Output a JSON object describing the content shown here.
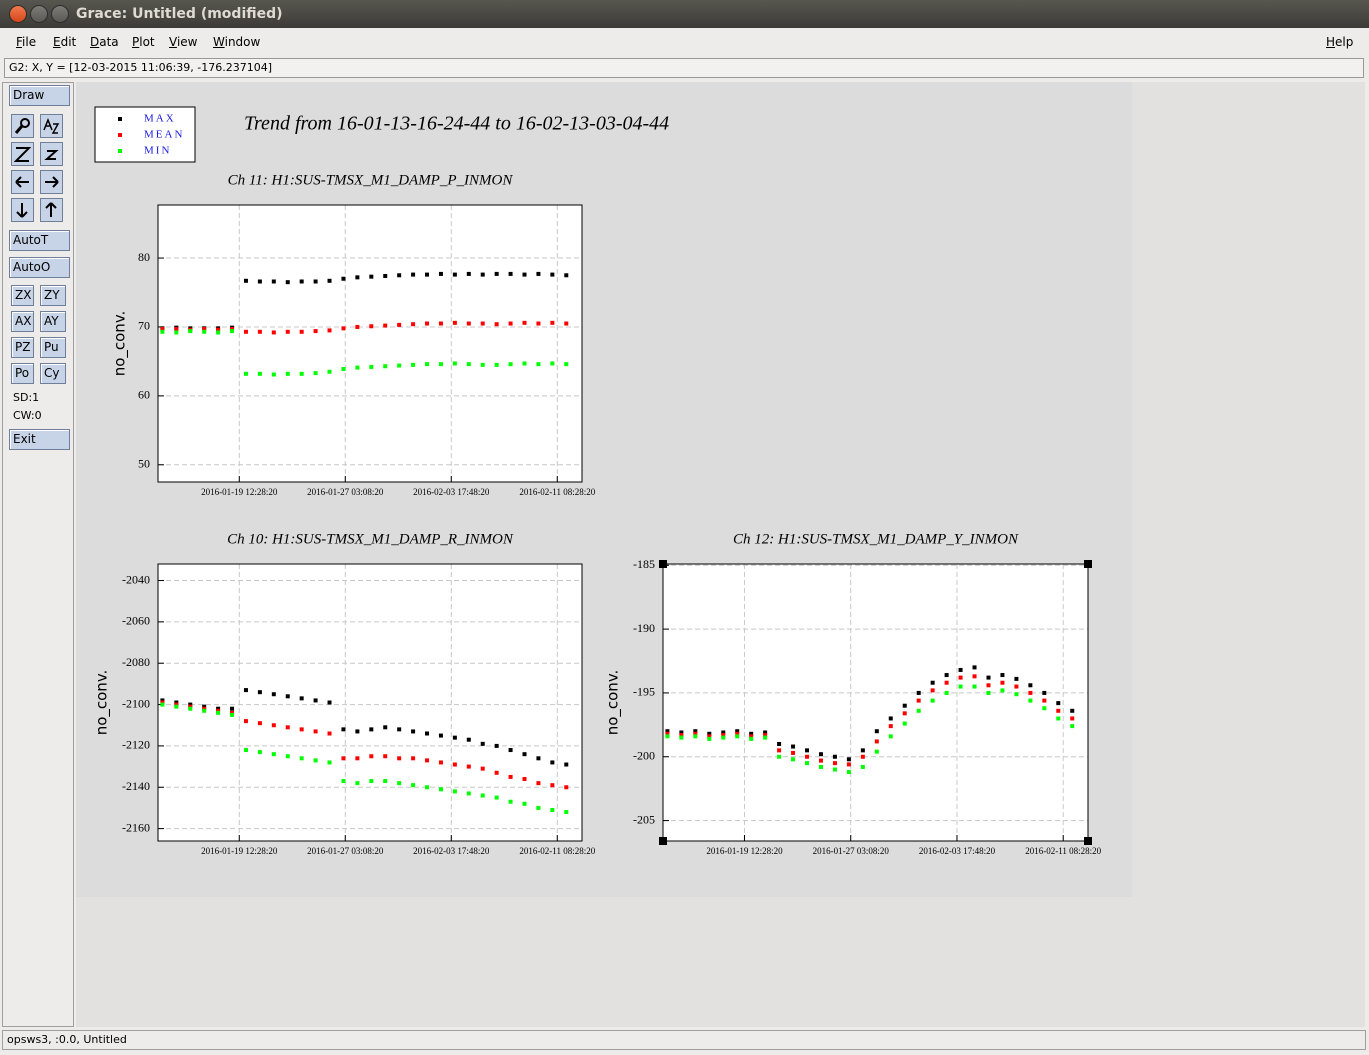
{
  "window": {
    "title": "Grace: Untitled (modified)",
    "menu": [
      "File",
      "Edit",
      "Data",
      "Plot",
      "View",
      "Window"
    ],
    "help": "Help",
    "locator": "G2: X, Y = [12-03-2015 11:06:39, -176.237104]",
    "status": "opsws3, :0.0, Untitled"
  },
  "toolbar": {
    "draw": "Draw",
    "auto": [
      "AutoT",
      "AutoO"
    ],
    "pairs": [
      [
        "ZX",
        "ZY"
      ],
      [
        "AX",
        "AY"
      ],
      [
        "PZ",
        "Pu"
      ],
      [
        "Po",
        "Cy"
      ]
    ],
    "info": [
      "SD:1",
      "CW:0"
    ],
    "exit": "Exit"
  },
  "graph_title": "Trend from 16-01-13-16-24-44 to 16-02-13-03-04-44",
  "chart_data": [
    {
      "type": "scatter",
      "title": "Ch 11: H1:SUS-TMSX_M1_DAMP_P_INMON",
      "ylabel": "no_conv.",
      "x": [
        "2016-01-14 00:00:00",
        "2016-01-15 00:00:00",
        "2016-01-16 00:00:00",
        "2016-01-17 00:00:00",
        "2016-01-18 00:00:00",
        "2016-01-19 00:00:00",
        "2016-01-20 00:00:00",
        "2016-01-21 00:00:00",
        "2016-01-22 00:00:00",
        "2016-01-23 00:00:00",
        "2016-01-24 00:00:00",
        "2016-01-25 00:00:00",
        "2016-01-26 00:00:00",
        "2016-01-27 00:00:00",
        "2016-01-28 00:00:00",
        "2016-01-29 00:00:00",
        "2016-01-30 00:00:00",
        "2016-01-31 00:00:00",
        "2016-02-01 00:00:00",
        "2016-02-02 00:00:00",
        "2016-02-03 00:00:00",
        "2016-02-04 00:00:00",
        "2016-02-05 00:00:00",
        "2016-02-06 00:00:00",
        "2016-02-07 00:00:00",
        "2016-02-08 00:00:00",
        "2016-02-09 00:00:00",
        "2016-02-10 00:00:00",
        "2016-02-11 00:00:00",
        "2016-02-12 00:00:00"
      ],
      "xlim": [
        "2016-01-13 16:24:44",
        "2016-02-13 03:04:44"
      ],
      "xticks": [
        "2016-01-19 12:28:20",
        "2016-01-27 03:08:20",
        "2016-02-03 17:48:20",
        "2016-02-11 08:28:20"
      ],
      "ylim": [
        47.5,
        87.7
      ],
      "yticks": [
        50,
        60,
        70,
        80
      ],
      "grid": true,
      "series": [
        {
          "name": "MAX",
          "color": "#000000",
          "values": [
            69.8,
            69.9,
            69.8,
            69.8,
            69.8,
            69.9,
            76.7,
            76.6,
            76.6,
            76.5,
            76.6,
            76.6,
            76.7,
            77.0,
            77.2,
            77.3,
            77.4,
            77.5,
            77.6,
            77.6,
            77.7,
            77.6,
            77.7,
            77.6,
            77.7,
            77.7,
            77.6,
            77.7,
            77.6,
            77.5
          ]
        },
        {
          "name": "MEAN",
          "color": "#ff0000",
          "values": [
            69.7,
            69.7,
            69.6,
            69.7,
            69.6,
            69.7,
            69.3,
            69.3,
            69.2,
            69.3,
            69.3,
            69.4,
            69.5,
            69.8,
            70.0,
            70.1,
            70.2,
            70.3,
            70.4,
            70.5,
            70.5,
            70.6,
            70.5,
            70.5,
            70.4,
            70.5,
            70.6,
            70.5,
            70.6,
            70.5
          ]
        },
        {
          "name": "MIN",
          "color": "#00ff00",
          "values": [
            69.3,
            69.2,
            69.4,
            69.3,
            69.2,
            69.4,
            63.2,
            63.2,
            63.1,
            63.2,
            63.2,
            63.3,
            63.5,
            63.9,
            64.1,
            64.2,
            64.3,
            64.4,
            64.5,
            64.6,
            64.6,
            64.7,
            64.6,
            64.5,
            64.5,
            64.6,
            64.7,
            64.6,
            64.7,
            64.6
          ]
        }
      ]
    },
    {
      "type": "scatter",
      "title": "Ch 10: H1:SUS-TMSX_M1_DAMP_R_INMON",
      "ylabel": "no_conv.",
      "x": [
        "2016-01-14 00:00:00",
        "2016-01-15 00:00:00",
        "2016-01-16 00:00:00",
        "2016-01-17 00:00:00",
        "2016-01-18 00:00:00",
        "2016-01-19 00:00:00",
        "2016-01-20 00:00:00",
        "2016-01-21 00:00:00",
        "2016-01-22 00:00:00",
        "2016-01-23 00:00:00",
        "2016-01-24 00:00:00",
        "2016-01-25 00:00:00",
        "2016-01-26 00:00:00",
        "2016-01-27 00:00:00",
        "2016-01-28 00:00:00",
        "2016-01-29 00:00:00",
        "2016-01-30 00:00:00",
        "2016-01-31 00:00:00",
        "2016-02-01 00:00:00",
        "2016-02-02 00:00:00",
        "2016-02-03 00:00:00",
        "2016-02-04 00:00:00",
        "2016-02-05 00:00:00",
        "2016-02-06 00:00:00",
        "2016-02-07 00:00:00",
        "2016-02-08 00:00:00",
        "2016-02-09 00:00:00",
        "2016-02-10 00:00:00",
        "2016-02-11 00:00:00",
        "2016-02-12 00:00:00"
      ],
      "xlim": [
        "2016-01-13 16:24:44",
        "2016-02-13 03:04:44"
      ],
      "xticks": [
        "2016-01-19 12:28:20",
        "2016-01-27 03:08:20",
        "2016-02-03 17:48:20",
        "2016-02-11 08:28:20"
      ],
      "ylim": [
        -2166,
        -2032
      ],
      "yticks": [
        -2040,
        -2060,
        -2080,
        -2100,
        -2120,
        -2140,
        -2160
      ],
      "grid": true,
      "series": [
        {
          "color": "#000000",
          "values": [
            -2098,
            -2099,
            -2100,
            -2101,
            -2102,
            -2102,
            -2093,
            -2094,
            -2095,
            -2096,
            -2097,
            -2098,
            -2099,
            -2112,
            -2113,
            -2112,
            -2111,
            -2112,
            -2113,
            -2114,
            -2115,
            -2116,
            -2117,
            -2119,
            -2120,
            -2122,
            -2124,
            -2126,
            -2128,
            -2129
          ]
        },
        {
          "color": "#ff0000",
          "values": [
            -2099,
            -2100,
            -2101,
            -2102,
            -2103,
            -2104,
            -2108,
            -2109,
            -2110,
            -2111,
            -2112,
            -2113,
            -2114,
            -2126,
            -2126,
            -2125,
            -2125,
            -2126,
            -2126,
            -2127,
            -2128,
            -2129,
            -2130,
            -2131,
            -2133,
            -2135,
            -2136,
            -2138,
            -2139,
            -2140
          ]
        },
        {
          "color": "#00ff00",
          "values": [
            -2100,
            -2101,
            -2102,
            -2103,
            -2104,
            -2105,
            -2122,
            -2123,
            -2124,
            -2125,
            -2126,
            -2127,
            -2128,
            -2137,
            -2138,
            -2137,
            -2137,
            -2138,
            -2139,
            -2140,
            -2141,
            -2142,
            -2143,
            -2144,
            -2145,
            -2147,
            -2148,
            -2150,
            -2151,
            -2152
          ]
        }
      ]
    },
    {
      "type": "scatter",
      "title": "Ch 12: H1:SUS-TMSX_M1_DAMP_Y_INMON",
      "ylabel": "no_conv.",
      "x": [
        "2016-01-14 00:00:00",
        "2016-01-15 00:00:00",
        "2016-01-16 00:00:00",
        "2016-01-17 00:00:00",
        "2016-01-18 00:00:00",
        "2016-01-19 00:00:00",
        "2016-01-20 00:00:00",
        "2016-01-21 00:00:00",
        "2016-01-22 00:00:00",
        "2016-01-23 00:00:00",
        "2016-01-24 00:00:00",
        "2016-01-25 00:00:00",
        "2016-01-26 00:00:00",
        "2016-01-27 00:00:00",
        "2016-01-28 00:00:00",
        "2016-01-29 00:00:00",
        "2016-01-30 00:00:00",
        "2016-01-31 00:00:00",
        "2016-02-01 00:00:00",
        "2016-02-02 00:00:00",
        "2016-02-03 00:00:00",
        "2016-02-04 00:00:00",
        "2016-02-05 00:00:00",
        "2016-02-06 00:00:00",
        "2016-02-07 00:00:00",
        "2016-02-08 00:00:00",
        "2016-02-09 00:00:00",
        "2016-02-10 00:00:00",
        "2016-02-11 00:00:00",
        "2016-02-12 00:00:00"
      ],
      "xlim": [
        "2016-01-13 16:24:44",
        "2016-02-13 03:04:44"
      ],
      "xticks": [
        "2016-01-19 12:28:20",
        "2016-01-27 03:08:20",
        "2016-02-03 17:48:20",
        "2016-02-11 08:28:20"
      ],
      "ylim": [
        -206.6,
        -184.9
      ],
      "yticks": [
        -185,
        -190,
        -195,
        -200,
        -205
      ],
      "grid": true,
      "series": [
        {
          "color": "#000000",
          "values": [
            -198.0,
            -198.1,
            -198.0,
            -198.2,
            -198.1,
            -198.0,
            -198.2,
            -198.1,
            -199.0,
            -199.2,
            -199.5,
            -199.8,
            -200.0,
            -200.2,
            -199.5,
            -198.0,
            -197.0,
            -196.0,
            -195.0,
            -194.2,
            -193.6,
            -193.2,
            -193.0,
            -193.8,
            -193.6,
            -193.9,
            -194.4,
            -195.0,
            -195.8,
            -196.4
          ]
        },
        {
          "color": "#ff0000",
          "values": [
            -198.2,
            -198.3,
            -198.2,
            -198.4,
            -198.3,
            -198.2,
            -198.4,
            -198.3,
            -199.5,
            -199.7,
            -200.0,
            -200.3,
            -200.5,
            -200.6,
            -200.0,
            -198.8,
            -197.6,
            -196.6,
            -195.6,
            -194.8,
            -194.2,
            -193.8,
            -193.7,
            -194.4,
            -194.2,
            -194.5,
            -195.0,
            -195.6,
            -196.4,
            -197.0
          ]
        },
        {
          "color": "#00ff00",
          "values": [
            -198.4,
            -198.5,
            -198.4,
            -198.6,
            -198.5,
            -198.4,
            -198.6,
            -198.5,
            -200.0,
            -200.2,
            -200.5,
            -200.8,
            -201.0,
            -201.2,
            -200.8,
            -199.6,
            -198.4,
            -197.4,
            -196.4,
            -195.6,
            -195.0,
            -194.5,
            -194.5,
            -195.0,
            -194.8,
            -195.1,
            -195.6,
            -196.2,
            -197.0,
            -197.6
          ]
        }
      ]
    }
  ]
}
